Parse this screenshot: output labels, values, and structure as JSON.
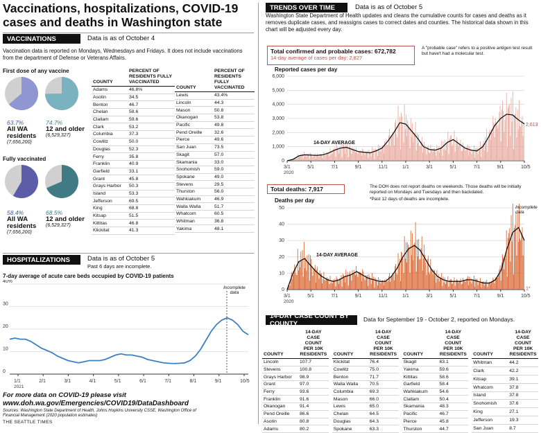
{
  "title": "Vaccinations, hospitalizations, COVID-19 cases and deaths in Washington state",
  "vaccinations": {
    "header": "VACCINATIONS",
    "as_of": "Data is as of October 4",
    "intro": "Vaccination data is reported on Mondays, Wednesdays and Fridays. It does not include vaccinations from the department of Defense or Veterans Affairs.",
    "first_dose_label": "First dose of any vaccine",
    "fully_label": "Fully vaccinated",
    "pies": [
      {
        "pct_text": "63.7%",
        "label": "All WA residents",
        "sub": "(7,656,200)",
        "value": 63.7,
        "color": "#8f96d1"
      },
      {
        "pct_text": "74.7%",
        "label": "12 and older",
        "sub": "(6,529,327)",
        "value": 74.7,
        "color": "#7bb2bf"
      },
      {
        "pct_text": "58.4%",
        "label": "All WA residents",
        "sub": "(7,656,200)",
        "value": 58.4,
        "color": "#5b5da9"
      },
      {
        "pct_text": "68.5%",
        "label": "12 and older",
        "sub": "(6,529,327)",
        "value": 68.5,
        "color": "#3f7a85"
      }
    ],
    "table_headers": {
      "county": "COUNTY",
      "pct": "PERCENT OF RESIDENTS FULLY VACCINATED"
    },
    "left_rows": [
      [
        "Adams",
        "46.8%"
      ],
      [
        "Asotin",
        "34.5"
      ],
      [
        "Benton",
        "46.7"
      ],
      [
        "Chelan",
        "58.6"
      ],
      [
        "Clallam",
        "59.6"
      ],
      [
        "Clark",
        "53.2"
      ],
      [
        "Columbia",
        "37.3"
      ],
      [
        "Cowlitz",
        "50.0"
      ],
      [
        "Douglas",
        "52.3"
      ],
      [
        "Ferry",
        "35.8"
      ],
      [
        "Franklin",
        "40.9"
      ],
      [
        "Garfield",
        "33.1"
      ],
      [
        "Grant",
        "45.8"
      ],
      [
        "Grays Harbor",
        "50.3"
      ],
      [
        "Island",
        "53.3"
      ],
      [
        "Jefferson",
        "69.5"
      ],
      [
        "King",
        "68.8"
      ],
      [
        "Kitsap",
        "51.5"
      ],
      [
        "Kittitas",
        "46.8"
      ],
      [
        "Klickitat",
        "41.3"
      ]
    ],
    "right_rows": [
      [
        "Lewis",
        "43.4%"
      ],
      [
        "Lincoln",
        "44.3"
      ],
      [
        "Mason",
        "50.8"
      ],
      [
        "Okanogan",
        "53.8"
      ],
      [
        "Pacific",
        "49.8"
      ],
      [
        "Pend Oreille",
        "32.6"
      ],
      [
        "Pierce",
        "49.6"
      ],
      [
        "San Juan",
        "73.5"
      ],
      [
        "Skagit",
        "57.0"
      ],
      [
        "Skamania",
        "33.0"
      ],
      [
        "Snohomish",
        "59.0"
      ],
      [
        "Spokane",
        "49.0"
      ],
      [
        "Stevens",
        "29.5"
      ],
      [
        "Thurston",
        "56.0"
      ],
      [
        "Wahkiakum",
        "46.9"
      ],
      [
        "Walla Walla",
        "51.7"
      ],
      [
        "Whatcom",
        "60.5"
      ],
      [
        "Whitman",
        "36.8"
      ],
      [
        "Yakima",
        "48.1"
      ]
    ]
  },
  "hospitalizations": {
    "header": "HOSPITALIZATIONS",
    "as_of": "Data is as of October 5",
    "note": "Past 6 days are incomplete.",
    "chart_title": "7-day average of acute care beds occupied by COVID-19 patients",
    "incomplete_label": "Incomplete data"
  },
  "footer": {
    "more_data": "For more data on COVID-19 please visit",
    "url": "www.doh.wa.gov/Emergencies/COVID19/DataDashboard",
    "sources": "Sources: Washington State Department of Health, Johns Hopkins University CSSE, Washington Office of Financial Management (2020 population estimates)",
    "credit": "THE SEATTLE TIMES"
  },
  "trends": {
    "header": "TRENDS OVER TIME",
    "as_of": "Data is as of October 5",
    "intro": "Washington State Department of Health updates and cleans the cumulative counts for cases and deaths as it removes duplicate cases, and reassigns cases to correct dates and counties. The historical data shown in this chart will be adjusted every day.",
    "cases_total": "Total confirmed and probable cases: 672,782",
    "cases_avg": "14-day average of cases per day: 2,827",
    "probable_note": "A \"probable case\" refers to a positive antigen test result but have't had a molecular test.",
    "cases_label": "Reported cases per day",
    "avg_label": "14-DAY AVERAGE",
    "latest_cases": "2,613",
    "deaths_total": "Total deaths: 7,917",
    "deaths_note": "The DOH does not report deaths on weekends. Those deaths will be initially reported on Mondays and Tuesdays and then backdated.",
    "deaths_note2": "*Past 12 days of deaths are incomplete.",
    "deaths_label": "Deaths per day",
    "deaths_incomplete": "Incomplete data",
    "latest_deaths": "1*"
  },
  "case_count": {
    "header": "14-DAY CASE COUNT BY COUNTY",
    "as_of": "Data for September 19 - October 2, reported on Mondays.",
    "col_county": "COUNTY",
    "col_value": "14-DAY CASE COUNT PER 10K RESIDENTS",
    "columns": [
      [
        [
          "Lincoln",
          "107.7"
        ],
        [
          "Stevens",
          "100.8"
        ],
        [
          "Grays Harbor",
          "98.9"
        ],
        [
          "Grant",
          "97.0"
        ],
        [
          "Ferry",
          "93.6"
        ],
        [
          "Franklin",
          "91.6"
        ],
        [
          "Okanogan",
          "91.4"
        ],
        [
          "Pend Oreille",
          "86.6"
        ],
        [
          "Asotin",
          "80.8"
        ],
        [
          "Adams",
          "80.2"
        ]
      ],
      [
        [
          "Klickitat",
          "76.4"
        ],
        [
          "Cowlitz",
          "75.0"
        ],
        [
          "Benton",
          "71.7"
        ],
        [
          "Walla Walla",
          "70.5"
        ],
        [
          "Columbia",
          "69.3"
        ],
        [
          "Mason",
          "66.0"
        ],
        [
          "Lewis",
          "65.0"
        ],
        [
          "Chelan",
          "64.5"
        ],
        [
          "Douglas",
          "64.3"
        ],
        [
          "Spokane",
          "63.3"
        ]
      ],
      [
        [
          "Skagit",
          "63.1"
        ],
        [
          "Yakima",
          "59.6"
        ],
        [
          "Kittitas",
          "58.6"
        ],
        [
          "Garfield",
          "58.4"
        ],
        [
          "Wahkiakum",
          "54.6"
        ],
        [
          "Clallam",
          "50.4"
        ],
        [
          "Skamania",
          "48.3"
        ],
        [
          "Pacific",
          "46.7"
        ],
        [
          "Pierce",
          "45.8"
        ],
        [
          "Thurston",
          "44.7"
        ]
      ],
      [
        [
          "Whitman",
          "44.2"
        ],
        [
          "Clark",
          "42.2"
        ],
        [
          "Kitsap",
          "39.1"
        ],
        [
          "Whatcom",
          "37.8"
        ],
        [
          "Island",
          "37.8"
        ],
        [
          "Snohomish",
          "37.6"
        ],
        [
          "King",
          "27.1"
        ],
        [
          "Jefferson",
          "19.3"
        ],
        [
          "San Juan",
          "8.7"
        ]
      ]
    ]
  },
  "chart_data": [
    {
      "type": "line",
      "title": "7-day average of acute care beds occupied by COVID-19 patients",
      "ylabel": "",
      "ylim": [
        0,
        40
      ],
      "yticks": [
        "0",
        "10",
        "20",
        "30",
        "40%"
      ],
      "xticks": [
        "1/1",
        "2/1",
        "3/1",
        "4/1",
        "5/1",
        "6/1",
        "7/1",
        "8/1",
        "9/1",
        "10/5"
      ],
      "xtick_year": "2021",
      "series": [
        {
          "values": [
            15.5,
            16,
            15.5,
            15.5,
            14.5,
            13,
            11.5,
            10.5,
            9.5,
            8,
            7,
            6,
            5.5,
            5,
            5.5,
            6,
            6,
            6,
            6.5,
            7.5,
            8.5,
            9,
            8.5,
            8.5,
            8,
            7.5,
            6.5,
            6,
            5.5,
            5,
            4.8,
            4.7,
            4.8,
            5,
            6,
            8,
            11,
            15,
            19,
            22,
            24,
            25,
            24,
            22,
            19,
            17.5
          ]
        }
      ]
    },
    {
      "type": "bar",
      "title": "Reported cases per day",
      "ylim": [
        0,
        6000
      ],
      "yticks": [
        "0",
        "1,000",
        "2,000",
        "3,000",
        "4,000",
        "5,000",
        "6,000"
      ],
      "xticks": [
        "3/1",
        "5/1",
        "7/1",
        "9/1",
        "11/1",
        "1/1",
        "3/1",
        "5/1",
        "7/1",
        "9/1",
        "10/5"
      ],
      "xtick_year": "2020",
      "avg_values": [
        0,
        100,
        350,
        420,
        400,
        380,
        420,
        550,
        750,
        900,
        950,
        800,
        650,
        600,
        560,
        700,
        900,
        1400,
        2000,
        2700,
        2600,
        2100,
        1600,
        1000,
        800,
        750,
        900,
        1300,
        1500,
        1200,
        900,
        750,
        700,
        1000,
        1700,
        2500,
        3000,
        3300,
        3250,
        2900,
        2613
      ]
    },
    {
      "type": "bar",
      "title": "Deaths per day",
      "ylim": [
        0,
        50
      ],
      "yticks": [
        "0",
        "10",
        "20",
        "30",
        "40",
        "50"
      ],
      "xticks": [
        "3/1",
        "5/1",
        "7/1",
        "9/1",
        "11/1",
        "1/1",
        "3/1",
        "5/1",
        "7/1",
        "9/1",
        "10/5"
      ],
      "xtick_year": "2020",
      "avg_values": [
        0,
        10,
        17,
        19,
        15,
        11,
        8,
        6,
        5,
        6,
        8,
        9,
        11,
        9,
        7,
        6,
        5,
        5,
        8,
        13,
        20,
        25,
        27,
        24,
        18,
        12,
        8,
        6,
        5,
        5,
        5,
        6,
        6,
        5,
        4,
        4,
        6,
        12,
        25,
        35,
        38,
        30
      ]
    }
  ]
}
